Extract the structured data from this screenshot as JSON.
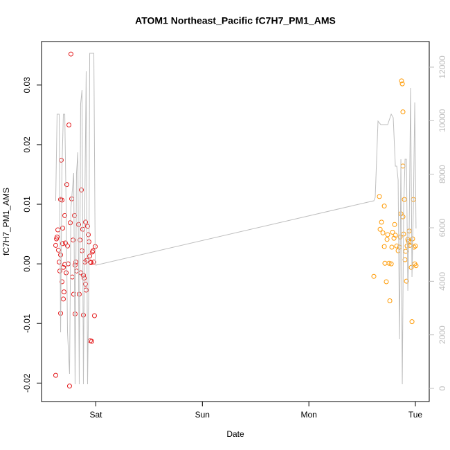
{
  "chart_data": {
    "type": "scatter",
    "title": "ATOM1 Northeast_Pacific fC7H7_PM1_AMS",
    "x_label": "Date",
    "y_label": "fC7H7_PM1_AMS",
    "xlim": [
      -0.51,
      3.13
    ],
    "xticks": [
      {
        "value": 0,
        "label": "Sat"
      },
      {
        "value": 1,
        "label": "Sun"
      },
      {
        "value": 2,
        "label": "Mon"
      },
      {
        "value": 3,
        "label": "Tue"
      }
    ],
    "ylim": [
      -0.0231,
      0.0373
    ],
    "yticks": [
      -0.02,
      -0.01,
      {
        "value": 0,
        "label": "0.00"
      },
      0.01,
      0.02,
      0.03
    ],
    "y2lim": [
      -491,
      12956
    ],
    "y2ticks": [
      0,
      2000,
      4000,
      6000,
      8000,
      10000,
      12000
    ],
    "series": [
      {
        "type": "scatter",
        "color": "#e41a1c",
        "x": [
          -0.377,
          -0.377,
          -0.37,
          -0.364,
          -0.357,
          -0.351,
          -0.344,
          -0.338,
          -0.331,
          -0.331,
          -0.331,
          -0.325,
          -0.318,
          -0.318,
          -0.312,
          -0.312,
          -0.305,
          -0.305,
          -0.299,
          -0.292,
          -0.292,
          -0.286,
          -0.279,
          -0.273,
          -0.266,
          -0.26,
          -0.253,
          -0.247,
          -0.24,
          -0.234,
          -0.227,
          -0.221,
          -0.214,
          -0.208,
          -0.201,
          -0.195,
          -0.195,
          -0.188,
          -0.182,
          -0.162,
          -0.156,
          -0.149,
          -0.143,
          -0.136,
          -0.13,
          -0.123,
          -0.117,
          -0.117,
          -0.11,
          -0.104,
          -0.097,
          -0.097,
          -0.091,
          -0.084,
          -0.078,
          -0.071,
          -0.065,
          -0.058,
          -0.052,
          -0.052,
          -0.045,
          -0.039,
          -0.032,
          -0.026,
          -0.019,
          -0.013,
          -0.006
        ],
        "values": [
          -0.0187,
          0.0031,
          0.0042,
          0.0045,
          0.0057,
          0.0023,
          0.0003,
          -0.0012,
          0.0015,
          -0.0083,
          0.0108,
          0.0174,
          0.0107,
          -0.003,
          0.0034,
          0.006,
          -0.0006,
          -0.0059,
          -0.0047,
          -0.0001,
          0.0081,
          0.0035,
          -0.0015,
          0.0133,
          0.003,
          0.0,
          0.0233,
          -0.0205,
          0.0069,
          0.0352,
          0.0109,
          -0.0022,
          0.004,
          -0.0051,
          0.0081,
          -0.0002,
          -0.0084,
          0.0003,
          -0.0012,
          0.0066,
          -0.0051,
          0.004,
          -0.0015,
          0.0124,
          0.0022,
          0.0058,
          -0.0086,
          -0.0019,
          -0.0024,
          0.0003,
          0.007,
          -0.0034,
          -0.0044,
          0.0006,
          0.0063,
          0.0049,
          0.0037,
          0.0013,
          0.0003,
          -0.0129,
          0.0002,
          -0.013,
          0.002,
          0.0022,
          0.0003,
          -0.0087,
          0.0029
        ]
      },
      {
        "type": "scatter",
        "color": "#ff9900",
        "x": [
          2.61,
          2.662,
          2.669,
          2.682,
          2.695,
          2.708,
          2.708,
          2.714,
          2.727,
          2.734,
          2.74,
          2.753,
          2.76,
          2.773,
          2.779,
          2.786,
          2.799,
          2.805,
          2.812,
          2.825,
          2.838,
          2.851,
          2.857,
          2.864,
          2.87,
          2.877,
          2.883,
          2.883,
          2.883,
          2.89,
          2.896,
          2.903,
          2.909,
          2.916,
          2.922,
          2.929,
          2.935,
          2.942,
          2.948,
          2.955,
          2.961,
          2.968,
          2.974,
          2.981,
          2.987,
          2.994,
          3.0,
          3.006
        ],
        "values": [
          -0.0021,
          0.0113,
          0.0058,
          0.007,
          0.0052,
          0.0097,
          0.0029,
          0.0001,
          -0.003,
          0.0041,
          0.0049,
          0.0001,
          -0.0062,
          0.0,
          0.0028,
          0.0053,
          0.0043,
          0.0066,
          0.0048,
          0.003,
          0.0022,
          0.0028,
          0.0045,
          0.0084,
          0.0307,
          0.0302,
          0.0255,
          0.0164,
          0.0079,
          0.005,
          0.0108,
          0.0007,
          0.0021,
          -0.0029,
          0.003,
          0.0041,
          0.0038,
          0.0055,
          0.0031,
          0.0036,
          -0.0006,
          -0.0097,
          0.0042,
          0.0108,
          0.0028,
          0.0,
          0.003,
          -0.0003
        ]
      },
      {
        "type": "line",
        "axis": "y2",
        "color": "#bebebe",
        "x": [
          -0.377,
          -0.364,
          -0.344,
          -0.331,
          -0.318,
          -0.305,
          -0.292,
          -0.279,
          -0.266,
          -0.247,
          -0.234,
          -0.221,
          -0.208,
          -0.195,
          -0.182,
          -0.169,
          -0.156,
          -0.143,
          -0.13,
          -0.117,
          -0.104,
          -0.091,
          -0.078,
          -0.065,
          -0.058,
          -0.032,
          -0.019,
          -0.006,
          0.0,
          2.61,
          2.623,
          2.649,
          2.675,
          2.714,
          2.74,
          2.773,
          2.792,
          2.812,
          2.825,
          2.838,
          2.851,
          2.864,
          2.877,
          2.89,
          2.903,
          2.916,
          2.929,
          2.942,
          2.955,
          2.968,
          2.981,
          2.994,
          3.006
        ],
        "values": [
          7008,
          10241,
          10241,
          2095,
          8301,
          10241,
          10241,
          6749,
          2095,
          543,
          6749,
          7396,
          8042,
          155,
          8042,
          8818,
          155,
          10628,
          11146,
          155,
          6749,
          11844,
          155,
          4163,
          12516,
          12516,
          12516,
          4681,
          4603,
          7008,
          7137,
          9982,
          9853,
          9853,
          9853,
          10241,
          10111,
          8301,
          8301,
          7784,
          1836,
          8560,
          155,
          6749,
          8560,
          8560,
          3646,
          5974,
          11223,
          4163,
          6749,
          10680,
          5974
        ]
      }
    ]
  }
}
